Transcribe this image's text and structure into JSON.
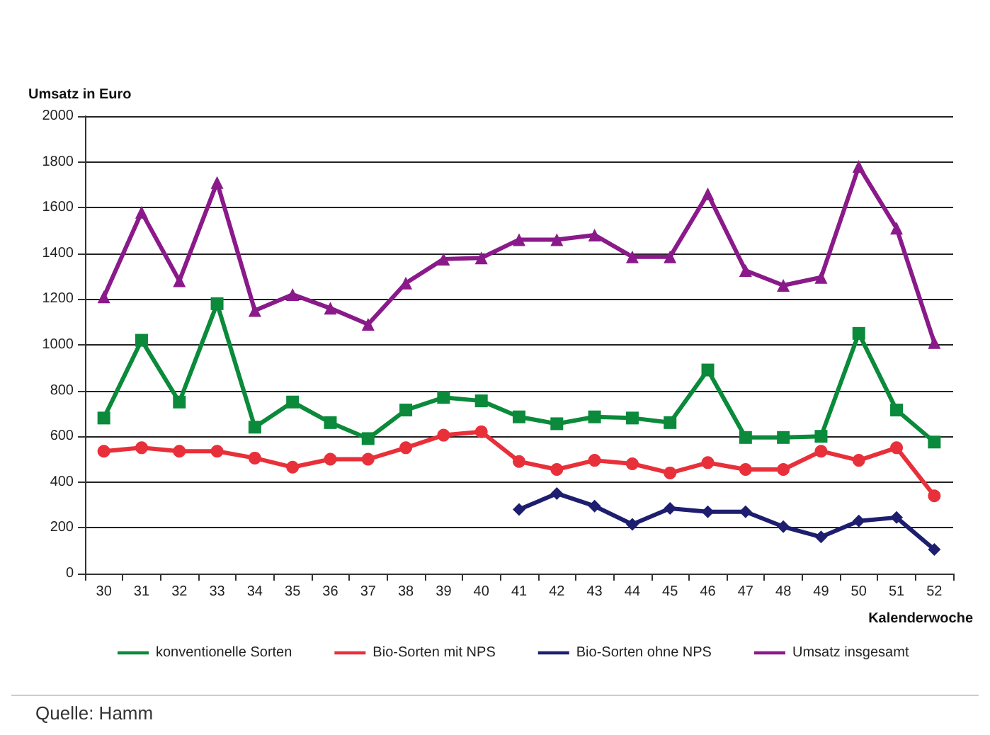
{
  "chart_data": {
    "type": "line",
    "ylabel": "Umsatz in Euro",
    "xlabel": "Kalenderwoche",
    "categories": [
      "30",
      "31",
      "32",
      "33",
      "34",
      "35",
      "36",
      "37",
      "38",
      "39",
      "40",
      "41",
      "42",
      "43",
      "44",
      "45",
      "46",
      "47",
      "48",
      "49",
      "50",
      "51",
      "52"
    ],
    "series": [
      {
        "name": "konventionelle Sorten",
        "color": "#0a8a3a",
        "marker": "square",
        "values": [
          680,
          1020,
          750,
          1180,
          640,
          750,
          660,
          590,
          715,
          770,
          755,
          685,
          655,
          685,
          680,
          660,
          890,
          595,
          595,
          600,
          1050,
          715,
          575
        ]
      },
      {
        "name": "Bio-Sorten mit NPS",
        "color": "#e8303a",
        "marker": "circle",
        "values": [
          535,
          550,
          535,
          535,
          505,
          465,
          500,
          500,
          550,
          605,
          620,
          490,
          455,
          495,
          480,
          440,
          485,
          455,
          455,
          535,
          495,
          550,
          340
        ]
      },
      {
        "name": "Bio-Sorten ohne NPS",
        "color": "#1e1e70",
        "marker": "diamond",
        "values": [
          null,
          null,
          null,
          null,
          null,
          null,
          null,
          null,
          null,
          null,
          null,
          280,
          350,
          295,
          215,
          285,
          270,
          270,
          205,
          160,
          230,
          245,
          105
        ]
      },
      {
        "name": "Umsatz insgesamt",
        "color": "#8a1a8a",
        "marker": "triangle",
        "values": [
          1210,
          1580,
          1280,
          1710,
          1150,
          1220,
          1160,
          1090,
          1270,
          1375,
          1380,
          1460,
          1460,
          1480,
          1385,
          1385,
          1660,
          1325,
          1260,
          1295,
          1780,
          1510,
          1010
        ]
      }
    ],
    "ylim": [
      0,
      2000
    ],
    "yticks": [
      0,
      200,
      400,
      600,
      800,
      1000,
      1200,
      1400,
      1600,
      1800,
      2000
    ],
    "grid": "y",
    "legend": "bottom",
    "line_style": "solid",
    "annotations": [
      "Quelle: Hamm"
    ]
  }
}
